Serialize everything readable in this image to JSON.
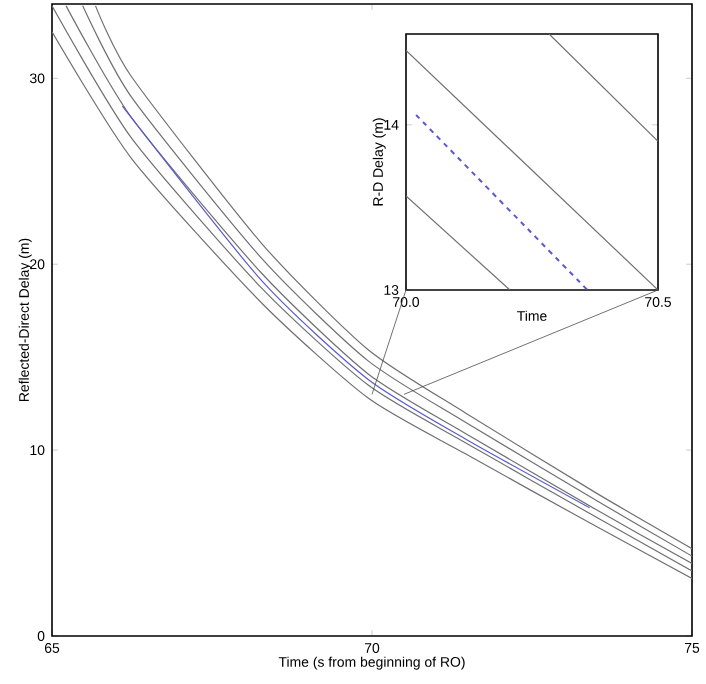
{
  "chart_data": [
    {
      "type": "line",
      "xlabel": "Time (s from beginning of RO)",
      "ylabel": "Reflected-Direct Delay (m)",
      "xlim": [
        65,
        75
      ],
      "ylim": [
        0,
        34
      ],
      "xticks": [
        65,
        70,
        75
      ],
      "yticks": [
        0,
        10,
        20,
        30
      ],
      "series": [
        {
          "color": "#707070",
          "x": [
            65,
            66.24,
            68.28,
            69.94,
            71.46,
            73.5,
            75
          ],
          "values": [
            32.5,
            25.7,
            17.9,
            12.8,
            9.8,
            5.9,
            3.1
          ]
        },
        {
          "color": "#707070",
          "x": [
            65,
            66.24,
            68.28,
            69.94,
            71.46,
            73.5,
            75
          ],
          "values": [
            33.9,
            26.8,
            18.7,
            13.5,
            10.4,
            6.4,
            3.5
          ]
        },
        {
          "color": "#707070",
          "x": [
            65.22,
            66.24,
            68.28,
            69.94,
            71.46,
            73.5,
            75
          ],
          "values": [
            33.9,
            27.9,
            19.5,
            14.1,
            10.9,
            6.8,
            3.9
          ]
        },
        {
          "color": "#707070",
          "x": [
            65.48,
            66.24,
            68.28,
            69.94,
            71.46,
            73.5,
            75
          ],
          "values": [
            33.9,
            29.0,
            20.3,
            14.8,
            11.5,
            7.3,
            4.3
          ]
        },
        {
          "color": "#707070",
          "x": [
            65.68,
            66.24,
            68.28,
            69.94,
            71.46,
            73.5,
            75
          ],
          "values": [
            33.9,
            30.1,
            21.1,
            15.4,
            12.0,
            7.7,
            4.7
          ]
        },
        {
          "color": "#5a5ad0",
          "x": [
            66.1,
            68.28,
            69.94,
            71.46,
            73.4
          ],
          "values": [
            28.5,
            19.1,
            13.8,
            10.6,
            6.9
          ]
        }
      ]
    },
    {
      "type": "line",
      "xlabel": "Time",
      "ylabel": "R-D Delay (m)",
      "xlim": [
        70.0,
        70.5
      ],
      "ylim": [
        13,
        14.55
      ],
      "xticks": [
        {
          "value": 70.0,
          "label": "70.0"
        },
        {
          "value": 70.5,
          "label": "70.5"
        }
      ],
      "yticks": [
        13,
        14
      ],
      "series": [
        {
          "color": "#707070",
          "x": [
            70.0,
            70.206
          ],
          "values": [
            13.57,
            13.0
          ]
        },
        {
          "color": "#707070",
          "x": [
            70.0,
            70.5
          ],
          "values": [
            14.45,
            13.0
          ]
        },
        {
          "color": "#707070",
          "x": [
            70.284,
            70.5
          ],
          "values": [
            14.55,
            13.9
          ]
        },
        {
          "color": "#5a5ad0",
          "line_style": "dashed",
          "x": [
            70.02,
            70.36
          ],
          "values": [
            14.06,
            13.0
          ]
        }
      ]
    }
  ]
}
